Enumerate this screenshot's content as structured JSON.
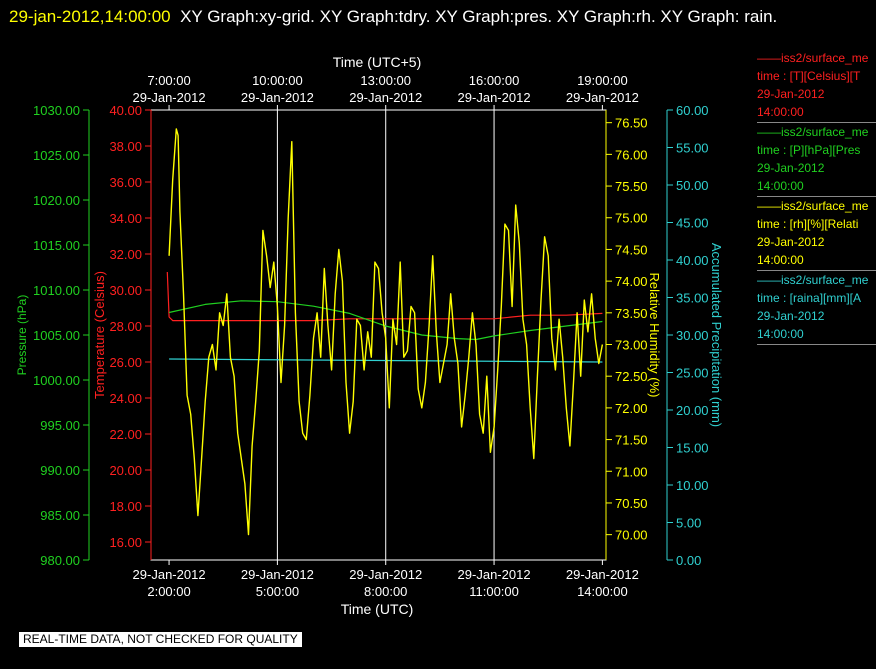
{
  "header": {
    "timestamp": "29-jan-2012,14:00:00",
    "title_text": "XY Graph:xy-grid.  XY Graph:tdry.  XY Graph:pres.  XY Graph:rh.  XY Graph: rain."
  },
  "watermark": "REAL-TIME DATA, NOT CHECKED FOR QUALITY",
  "legend": [
    {
      "line1": "iss2/surface_me",
      "line2": "time : [T][Celsius][T",
      "line3": "29-Jan-2012",
      "line4": "14:00:00",
      "color": "#ff2020"
    },
    {
      "line1": "iss2/surface_me",
      "line2": "time : [P][hPa][Pres",
      "line3": "29-Jan-2012",
      "line4": "14:00:00",
      "color": "#20d020"
    },
    {
      "line1": "iss2/surface_me",
      "line2": "time : [rh][%][Relati",
      "line3": "29-Jan-2012",
      "line4": "14:00:00",
      "color": "#ffff00"
    },
    {
      "line1": "iss2/surface_me",
      "line2": "time : [raina][mm][A",
      "line3": "29-Jan-2012",
      "line4": "14:00:00",
      "color": "#30d0d0"
    }
  ],
  "chart_data": {
    "type": "line",
    "title": "",
    "xlabel": "Time (UTC)",
    "x2label": "Time (UTC+5)",
    "xlim": [
      1.5,
      14.1
    ],
    "x_ticks_bottom": [
      {
        "at": 2,
        "date": "29-Jan-2012",
        "time": "2:00:00"
      },
      {
        "at": 5,
        "date": "29-Jan-2012",
        "time": "5:00:00"
      },
      {
        "at": 8,
        "date": "29-Jan-2012",
        "time": "8:00:00"
      },
      {
        "at": 11,
        "date": "29-Jan-2012",
        "time": "11:00:00"
      },
      {
        "at": 14,
        "date": "29-Jan-2012",
        "time": "14:00:00"
      }
    ],
    "x_ticks_top": [
      {
        "at": 2,
        "time": "7:00:00",
        "date": "29-Jan-2012"
      },
      {
        "at": 5,
        "time": "10:00:00",
        "date": "29-Jan-2012"
      },
      {
        "at": 8,
        "time": "13:00:00",
        "date": "29-Jan-2012"
      },
      {
        "at": 11,
        "time": "16:00:00",
        "date": "29-Jan-2012"
      },
      {
        "at": 14,
        "time": "19:00:00",
        "date": "29-Jan-2012"
      }
    ],
    "vertical_grid_at": [
      5,
      8,
      11
    ],
    "axes": {
      "temperature": {
        "label": "Temperature (Celsius)",
        "color": "#ff2020",
        "ylim": [
          15.0,
          40.0
        ],
        "ticks": [
          "16.00",
          "18.00",
          "20.00",
          "22.00",
          "24.00",
          "26.00",
          "28.00",
          "30.00",
          "32.00",
          "34.00",
          "36.00",
          "38.00",
          "40.00"
        ]
      },
      "pressure": {
        "label": "Pressure (hPa)",
        "color": "#20d020",
        "ylim": [
          980.0,
          1030.0
        ],
        "ticks": [
          "980.00",
          "985.00",
          "990.00",
          "995.00",
          "1000.00",
          "1005.00",
          "1010.00",
          "1015.00",
          "1020.00",
          "1025.00",
          "1030.00"
        ]
      },
      "humidity": {
        "label": "Relative Humidity (%)",
        "color": "#ffff00",
        "ylim": [
          69.6,
          76.7
        ],
        "ticks": [
          "70.00",
          "70.50",
          "71.00",
          "71.50",
          "72.00",
          "72.50",
          "73.00",
          "73.50",
          "74.00",
          "74.50",
          "75.00",
          "75.50",
          "76.00",
          "76.50"
        ]
      },
      "rain": {
        "label": "Accumulated Precipitation (mm)",
        "color": "#30d0d0",
        "ylim": [
          0.0,
          60.0
        ],
        "ticks": [
          "0.00",
          "5.00",
          "10.00",
          "15.00",
          "20.00",
          "25.00",
          "30.00",
          "35.00",
          "40.00",
          "45.00",
          "50.00",
          "55.00",
          "60.00"
        ]
      }
    },
    "series": [
      {
        "name": "Temperature",
        "axis": "temperature",
        "color": "#ff2020",
        "x": [
          1.95,
          2.0,
          2.1,
          2.5,
          3.0,
          4.0,
          5.0,
          6.0,
          7.0,
          8.0,
          9.0,
          10.0,
          11.0,
          12.0,
          13.0,
          14.0
        ],
        "y": [
          31.0,
          28.5,
          28.3,
          28.3,
          28.3,
          28.3,
          28.3,
          28.3,
          28.4,
          28.4,
          28.4,
          28.4,
          28.4,
          28.6,
          28.6,
          28.7
        ]
      },
      {
        "name": "Pressure",
        "axis": "pressure",
        "color": "#20d020",
        "x": [
          2.0,
          3.0,
          4.0,
          5.0,
          6.0,
          7.0,
          8.0,
          9.0,
          10.0,
          10.5,
          11.0,
          12.0,
          13.0,
          14.0
        ],
        "y": [
          1007.5,
          1008.4,
          1008.8,
          1008.7,
          1008.2,
          1007.4,
          1006.0,
          1005.0,
          1004.6,
          1004.5,
          1004.9,
          1005.5,
          1006.0,
          1006.5
        ]
      },
      {
        "name": "Relative Humidity",
        "axis": "humidity",
        "color": "#ffff00",
        "x": [
          2.0,
          2.1,
          2.2,
          2.25,
          2.3,
          2.4,
          2.5,
          2.6,
          2.7,
          2.8,
          2.9,
          3.0,
          3.1,
          3.2,
          3.3,
          3.4,
          3.5,
          3.6,
          3.7,
          3.8,
          3.9,
          4.0,
          4.1,
          4.2,
          4.3,
          4.4,
          4.5,
          4.6,
          4.7,
          4.8,
          4.9,
          5.0,
          5.1,
          5.2,
          5.3,
          5.4,
          5.5,
          5.6,
          5.7,
          5.8,
          5.9,
          6.0,
          6.1,
          6.2,
          6.3,
          6.4,
          6.5,
          6.6,
          6.7,
          6.8,
          6.9,
          7.0,
          7.1,
          7.2,
          7.3,
          7.4,
          7.5,
          7.6,
          7.7,
          7.8,
          7.9,
          8.0,
          8.1,
          8.2,
          8.3,
          8.4,
          8.5,
          8.6,
          8.7,
          8.8,
          8.9,
          9.0,
          9.1,
          9.2,
          9.3,
          9.4,
          9.5,
          9.6,
          9.7,
          9.8,
          9.9,
          10.0,
          10.1,
          10.2,
          10.3,
          10.4,
          10.5,
          10.6,
          10.7,
          10.8,
          10.9,
          11.0,
          11.1,
          11.2,
          11.3,
          11.4,
          11.5,
          11.6,
          11.7,
          11.8,
          11.9,
          12.0,
          12.1,
          12.2,
          12.3,
          12.4,
          12.5,
          12.6,
          12.7,
          12.8,
          12.9,
          13.0,
          13.1,
          13.2,
          13.3,
          13.4,
          13.5,
          13.6,
          13.7,
          13.8,
          13.9,
          14.0
        ],
        "y": [
          74.4,
          75.6,
          76.4,
          76.3,
          75.1,
          73.8,
          72.2,
          71.9,
          71.2,
          70.3,
          71.2,
          72.1,
          72.8,
          73.0,
          72.6,
          73.5,
          73.3,
          73.8,
          72.8,
          72.5,
          71.6,
          71.2,
          70.8,
          70.0,
          71.4,
          72.1,
          72.9,
          74.8,
          74.4,
          73.9,
          74.3,
          73.6,
          72.4,
          73.3,
          75.0,
          76.2,
          73.5,
          72.1,
          71.6,
          71.5,
          72.2,
          73.1,
          73.5,
          72.8,
          74.2,
          73.3,
          72.6,
          73.8,
          74.5,
          74.0,
          72.4,
          71.6,
          72.1,
          73.4,
          73.3,
          72.6,
          73.2,
          72.8,
          74.3,
          74.2,
          73.5,
          73.1,
          72.0,
          73.4,
          73.0,
          74.3,
          72.8,
          72.9,
          73.6,
          73.5,
          72.3,
          72.0,
          72.4,
          73.3,
          74.4,
          73.2,
          72.4,
          72.7,
          73.0,
          73.8,
          73.1,
          72.7,
          71.7,
          72.2,
          72.8,
          73.5,
          73.0,
          71.9,
          71.6,
          72.5,
          71.3,
          71.7,
          72.6,
          73.6,
          74.9,
          74.8,
          73.6,
          75.2,
          74.6,
          73.4,
          73.0,
          72.0,
          71.2,
          72.5,
          73.7,
          74.7,
          74.4,
          73.1,
          72.6,
          73.4,
          72.8,
          72.0,
          71.4,
          72.4,
          73.5,
          72.5,
          73.7,
          73.2,
          73.8,
          73.1,
          72.7,
          73.0
        ]
      },
      {
        "name": "Accumulated Precipitation",
        "axis": "rain",
        "color": "#30d0d0",
        "x": [
          2.0,
          14.0
        ],
        "y": [
          26.8,
          26.4
        ]
      }
    ]
  }
}
